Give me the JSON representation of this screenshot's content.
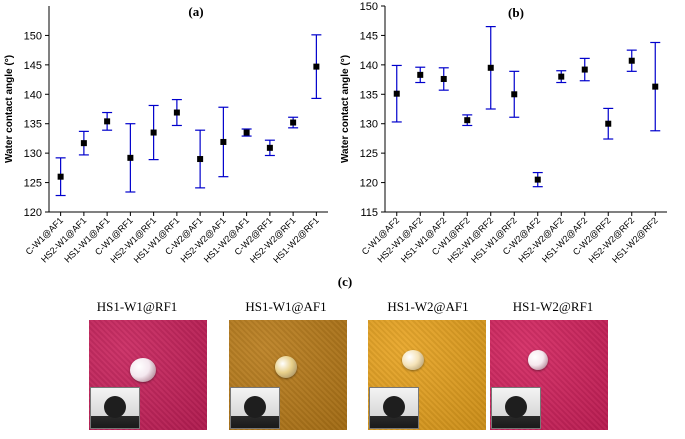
{
  "panel_a": {
    "label": "(a)"
  },
  "panel_b": {
    "label": "(b)"
  },
  "panel_c": {
    "label": "(c)"
  },
  "chart_data": [
    {
      "type": "scatter",
      "id": "a",
      "title": "(a)",
      "xlabel": "",
      "ylabel": "Water contact angle (°)",
      "ylim": [
        120,
        155
      ],
      "yticks": [
        120,
        125,
        130,
        135,
        140,
        145,
        150
      ],
      "categories": [
        "C-W1@AF1",
        "HS2-W1@AF1",
        "HS1-W1@AF1",
        "C-W1@RF1",
        "HS2-W1@RF1",
        "HS1-W1@RF1",
        "C-W2@AF1",
        "HS2-W2@AF1",
        "HS1-W2@AF1",
        "C-W2@RF1",
        "HS2-W2@RF1",
        "HS1-W2@RF1"
      ],
      "values": [
        126.0,
        131.7,
        135.4,
        129.2,
        133.5,
        136.9,
        129.0,
        131.9,
        133.5,
        130.9,
        135.2,
        144.7
      ],
      "error": [
        3.2,
        2.0,
        1.5,
        5.8,
        4.6,
        2.2,
        4.9,
        5.9,
        0.6,
        1.3,
        0.9,
        5.4
      ],
      "marker": "square",
      "color": "#0000cc"
    },
    {
      "type": "scatter",
      "id": "b",
      "title": "(b)",
      "xlabel": "",
      "ylabel": "Water contact angle (°)",
      "ylim": [
        115,
        150
      ],
      "yticks": [
        115,
        120,
        125,
        130,
        135,
        140,
        145,
        150
      ],
      "categories": [
        "C-W1@AF2",
        "HS2-W1@AF2",
        "HS1-W1@AF2",
        "C-W1@RF2",
        "HS2-W1@RF2",
        "HS1-W1@RF2",
        "C-W2@AF2",
        "HS2-W2@AF2",
        "HS1-W2@AF2",
        "C-W2@RF2",
        "HS2-W2@RF2",
        "HS1-W2@RF2"
      ],
      "values": [
        135.1,
        138.3,
        137.6,
        130.6,
        139.5,
        135.0,
        120.5,
        138.0,
        139.2,
        130.0,
        140.7,
        136.3
      ],
      "error": [
        4.8,
        1.3,
        1.9,
        0.9,
        7.0,
        3.9,
        1.2,
        1.0,
        1.9,
        2.6,
        1.8,
        7.5
      ],
      "marker": "square",
      "color": "#0000cc"
    }
  ],
  "photos": [
    {
      "caption": "HS1-W1@RF1",
      "fabric_color": "#c81f5a",
      "drop_color": "#f4e8ef"
    },
    {
      "caption": "HS1-W1@AF1",
      "fabric_color": "#b87a17",
      "drop_color": "#e8d08a"
    },
    {
      "caption": "HS1-W2@AF1",
      "fabric_color": "#e7a11c",
      "drop_color": "#f5e3b8"
    },
    {
      "caption": "HS1-W2@RF1",
      "fabric_color": "#d2205c",
      "drop_color": "#f6e9ef"
    }
  ]
}
